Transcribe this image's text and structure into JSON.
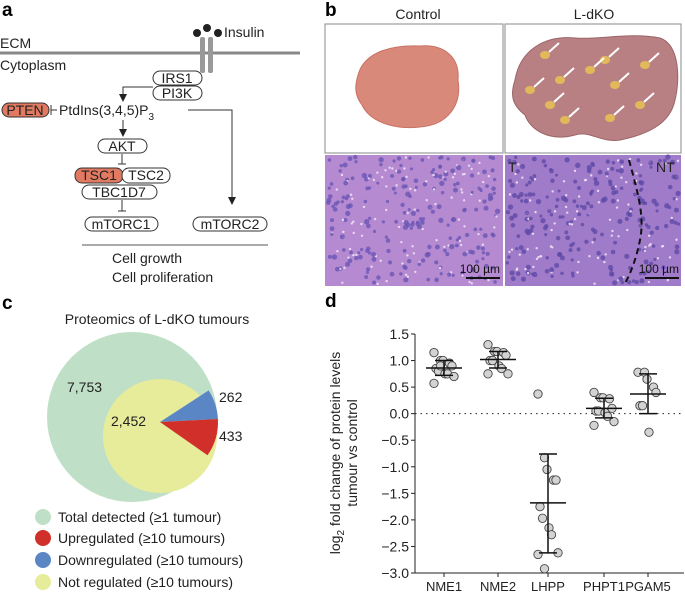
{
  "panel_a": {
    "label": "a",
    "ecm": "ECM",
    "cytoplasm": "Cytoplasm",
    "insulin": "Insulin",
    "irs1": "IRS1",
    "pi3k": "PI3K",
    "pten": "PTEN",
    "ptdins": "PtdIns(3,4,5)P",
    "ptdins_sub": "3",
    "akt": "AKT",
    "tsc1": "TSC1",
    "tsc2": "TSC2",
    "tbc1d7": "TBC1D7",
    "mtorc1": "mTORC1",
    "mtorc2": "mTORC2",
    "outcome1": "Cell growth",
    "outcome2": "Cell proliferation",
    "colors": {
      "highlight": "#e27a62"
    }
  },
  "panel_b": {
    "label": "b",
    "col1": "Control",
    "col2": "L-dKO",
    "tumour_label": "T",
    "nontumour_label": "NT",
    "scale1": "100 µm",
    "scale2": "100 µm"
  },
  "panel_c": {
    "label": "c",
    "title": "Proteomics of L-dKO tumours",
    "values": {
      "total": "7,753",
      "not_regulated": "2,452",
      "down": "262",
      "up": "433"
    },
    "legend": [
      {
        "label": "Total detected (≥1 tumour)",
        "color": "#bfe0c6"
      },
      {
        "label": "Upregulated (≥10 tumours)",
        "color": "#d1302a"
      },
      {
        "label": "Downregulated (≥10 tumours)",
        "color": "#5b86c6"
      },
      {
        "label": "Not regulated (≥10 tumours)",
        "color": "#e6ec9a"
      }
    ]
  },
  "panel_d": {
    "label": "d",
    "ylabel_prefix": "log",
    "ylabel_sub": "2",
    "ylabel_line1": " fold change of protein levels",
    "ylabel_line2": "tumour vs control"
  },
  "chart_data": {
    "type": "scatter",
    "categories": [
      "NME1",
      "NME2",
      "LHPP",
      "PHPT1",
      "PGAM5"
    ],
    "ylim": [
      -3.0,
      1.5
    ],
    "yticks": [
      "1.5",
      "1.0",
      "0.5",
      "0.0",
      "−0.5",
      "−1.0",
      "−1.5",
      "−2.0",
      "−2.5",
      "−3.0"
    ],
    "reference_line": 0.0,
    "point_color": "#d3d3d3",
    "series": [
      {
        "category": "NME1",
        "points": [
          1.15,
          1.0,
          1.0,
          0.95,
          0.9,
          0.85,
          0.8,
          0.75,
          0.75,
          0.7,
          0.57,
          0.9
        ],
        "mean": 0.86,
        "err_low": 0.72,
        "err_high": 1.0
      },
      {
        "category": "NME2",
        "points": [
          1.3,
          1.17,
          1.17,
          1.15,
          1.1,
          1.0,
          1.0,
          0.9,
          0.85,
          0.75,
          0.75
        ],
        "mean": 1.02,
        "err_low": 0.86,
        "err_high": 1.17
      },
      {
        "category": "LHPP",
        "points": [
          0.37,
          -0.83,
          -1.05,
          -1.25,
          -1.25,
          -1.75,
          -1.97,
          -2.15,
          -2.28,
          -2.62,
          -2.65,
          -2.92
        ],
        "mean": -1.68,
        "err_low": -2.62,
        "err_high": -0.76
      },
      {
        "category": "PHPT1",
        "points": [
          0.4,
          0.3,
          0.3,
          0.28,
          0.1,
          0.05,
          0.05,
          0.02,
          -0.05,
          -0.15,
          -0.22
        ],
        "mean": 0.1,
        "err_low": -0.08,
        "err_high": 0.29
      },
      {
        "category": "PGAM5",
        "points": [
          0.78,
          0.78,
          0.65,
          0.5,
          0.4,
          0.15,
          0.15,
          -0.35
        ],
        "mean": 0.37,
        "err_low": 0.0,
        "err_high": 0.75
      }
    ]
  }
}
